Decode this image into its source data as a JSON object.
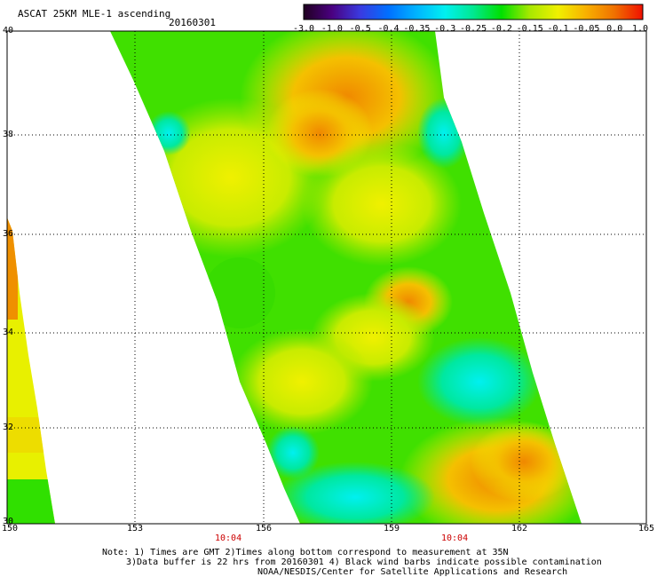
{
  "header": {
    "title": "ASCAT 25KM MLE-1 ascending",
    "date": "20160301"
  },
  "colorbar": {
    "ticks": [
      "-3.0",
      "-1.0",
      "-0.5",
      "-0.4",
      "-0.35",
      "-0.3",
      "-0.25",
      "-0.2",
      "-0.15",
      "-0.1",
      "-0.05",
      "0.0",
      "1.0"
    ],
    "colors": [
      "#200020",
      "#4a0080",
      "#3a3ae0",
      "#0070ff",
      "#00b4ff",
      "#00f0f0",
      "#00e890",
      "#00e000",
      "#a8e800",
      "#f0f000",
      "#f8b000",
      "#f07000",
      "#f01000"
    ]
  },
  "map": {
    "lat_labels": [
      "40",
      "38",
      "36",
      "34",
      "32",
      "30"
    ],
    "lon_labels": [
      "150",
      "153",
      "156",
      "159",
      "162",
      "165"
    ],
    "times": [
      "10:04",
      "10:04"
    ]
  },
  "notes": {
    "line1": "Note: 1) Times are GMT 2)Times along bottom correspond to measurement at 35N",
    "line2": "3)Data buffer is 22 hrs from 20160301 4) Black wind barbs indicate possible contamination",
    "line3": "NOAA/NESDIS/Center for Satellite Applications and Research"
  }
}
